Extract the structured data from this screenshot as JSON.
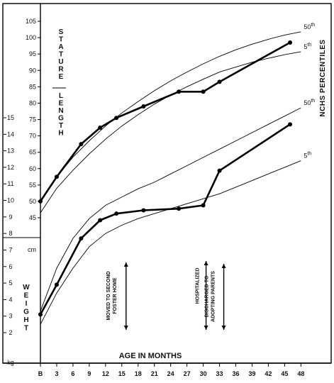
{
  "chart_data": {
    "type": "line",
    "title": "",
    "x_axis": {
      "label": "AGE IN MONTHS",
      "ticks": [
        "B",
        "3",
        "6",
        "9",
        "12",
        "15",
        "18",
        "21",
        "24",
        "27",
        "30",
        "33",
        "36",
        "39",
        "42",
        "45",
        "48"
      ],
      "range": [
        0,
        49
      ]
    },
    "right_label": "NCHS PERCENTILES",
    "stature": {
      "label_top": "STATURE",
      "label_bottom": "LENGTH",
      "unit": "cm",
      "ticks": [
        45,
        50,
        55,
        60,
        65,
        70,
        75,
        80,
        85,
        90,
        95,
        100,
        105
      ],
      "range": [
        42,
        107
      ],
      "percentiles": [
        {
          "name": "50th",
          "x": [
            0,
            3,
            6,
            9,
            12,
            15,
            18,
            21,
            24,
            27,
            30,
            33,
            36,
            39,
            42,
            45,
            48
          ],
          "y": [
            50.0,
            57.5,
            63.5,
            68.5,
            73.0,
            77.0,
            80.5,
            83.8,
            86.8,
            89.5,
            92.0,
            94.3,
            96.3,
            98.0,
            99.5,
            100.8,
            101.8
          ]
        },
        {
          "name": "5th",
          "x": [
            0,
            3,
            6,
            9,
            12,
            15,
            18,
            21,
            24,
            27,
            30,
            33,
            36,
            39,
            42,
            45,
            48
          ],
          "y": [
            46.5,
            54.0,
            59.5,
            64.5,
            69.0,
            73.0,
            76.5,
            79.7,
            82.5,
            85.0,
            87.3,
            89.5,
            91.0,
            92.5,
            93.7,
            94.8,
            95.7
          ]
        }
      ],
      "patient": {
        "x": [
          0,
          3,
          7.5,
          11,
          14,
          19,
          25.5,
          30,
          33,
          46
        ],
        "y": [
          50.0,
          57.5,
          67.5,
          72.5,
          75.5,
          79.0,
          83.5,
          83.5,
          86.5,
          98.5
        ]
      }
    },
    "weight": {
      "label": "WEIGHT",
      "unit": "kg",
      "ticks": [
        2,
        3,
        4,
        5,
        6,
        7,
        8,
        9,
        10,
        11,
        12,
        13,
        14,
        15
      ],
      "range": [
        1.3,
        16
      ],
      "percentiles": [
        {
          "name": "50th",
          "x": [
            0,
            3,
            6,
            9,
            12,
            15,
            18,
            21,
            24,
            27,
            30,
            33,
            36,
            39,
            42,
            45,
            48
          ],
          "y": [
            3.3,
            5.9,
            7.7,
            8.9,
            9.7,
            10.2,
            10.7,
            11.1,
            11.6,
            12.1,
            12.6,
            13.1,
            13.6,
            14.1,
            14.6,
            15.1,
            15.6
          ]
        },
        {
          "name": "5th",
          "x": [
            0,
            3,
            6,
            9,
            12,
            15,
            18,
            21,
            24,
            27,
            30,
            33,
            36,
            39,
            42,
            45,
            48
          ],
          "y": [
            2.5,
            4.4,
            5.9,
            7.2,
            8.0,
            8.5,
            8.9,
            9.2,
            9.5,
            9.8,
            10.1,
            10.4,
            10.8,
            11.2,
            11.6,
            12.0,
            12.4
          ]
        }
      ],
      "patient": {
        "x": [
          0,
          3,
          7.5,
          11,
          14,
          19,
          25.5,
          30,
          33,
          46
        ],
        "y": [
          3.1,
          4.9,
          7.7,
          8.8,
          9.2,
          9.4,
          9.5,
          9.7,
          11.8,
          14.6
        ]
      }
    },
    "annotations": [
      {
        "text": "MOVED TO SECOND FOSTER HOME",
        "x": 15
      },
      {
        "text": "HOSPITALIZED",
        "x": 30
      },
      {
        "text": "DISCHARGED TO ADOPTING PARENTS",
        "x": 33
      }
    ]
  }
}
